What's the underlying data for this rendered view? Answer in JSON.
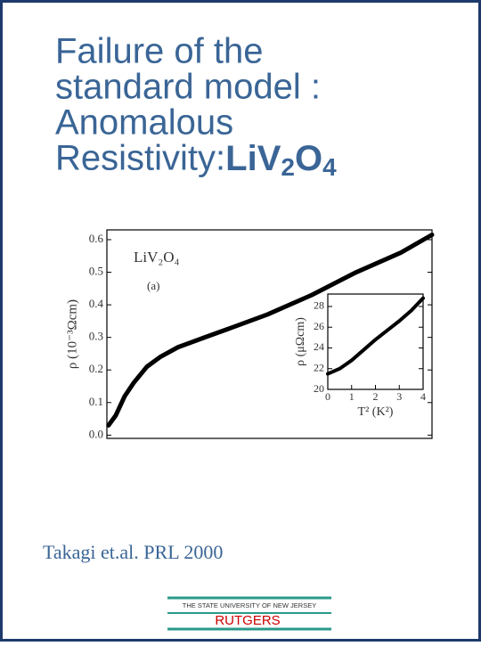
{
  "title": {
    "lines": [
      "Failure of the",
      "standard model :",
      "Anomalous",
      "Resistivity:"
    ],
    "formula": [
      "LiV",
      "2",
      "O",
      "4"
    ]
  },
  "chart_data": {
    "type": "line",
    "ylabel": "ρ (10⁻³Ωcm)",
    "annotations": [
      "LiV₂O₄",
      "(a)"
    ],
    "x": [
      0.005,
      0.027,
      0.055,
      0.082,
      0.123,
      0.164,
      0.219,
      0.301,
      0.384,
      0.493,
      0.63,
      0.767,
      0.904,
      1.0
    ],
    "series": [
      {
        "color": "#000000",
        "values": [
          0.03,
          0.06,
          0.12,
          0.16,
          0.21,
          0.24,
          0.27,
          0.3,
          0.33,
          0.37,
          0.43,
          0.5,
          0.56,
          0.615
        ]
      }
    ],
    "xlim": [
      0,
      1
    ],
    "ylim": [
      -0.01,
      0.63
    ],
    "yticks": [
      {
        "value": 0,
        "label": "0.0"
      },
      0.1,
      0.2,
      0.3,
      0.4,
      0.5,
      0.6
    ],
    "inset": {
      "type": "line",
      "ylabel": "ρ (μΩcm)",
      "xlabel": "T² (K²)",
      "x": [
        0,
        0.5,
        1,
        1.5,
        2,
        2.5,
        3,
        3.5,
        4
      ],
      "series": [
        {
          "color": "#000000",
          "values": [
            21.5,
            22,
            22.8,
            23.8,
            24.8,
            25.7,
            26.6,
            27.6,
            28.8
          ]
        }
      ],
      "xlim": [
        0,
        4
      ],
      "ylim": [
        20,
        29.2
      ],
      "xticks": [
        0,
        1,
        2,
        3,
        4
      ],
      "yticks": [
        20,
        22,
        24,
        26,
        28
      ]
    }
  },
  "citation": "Takagi et.al.  PRL  2000",
  "footer": {
    "university": "THE STATE UNIVERSITY OF NEW JERSEY",
    "name": "RUTGERS"
  }
}
